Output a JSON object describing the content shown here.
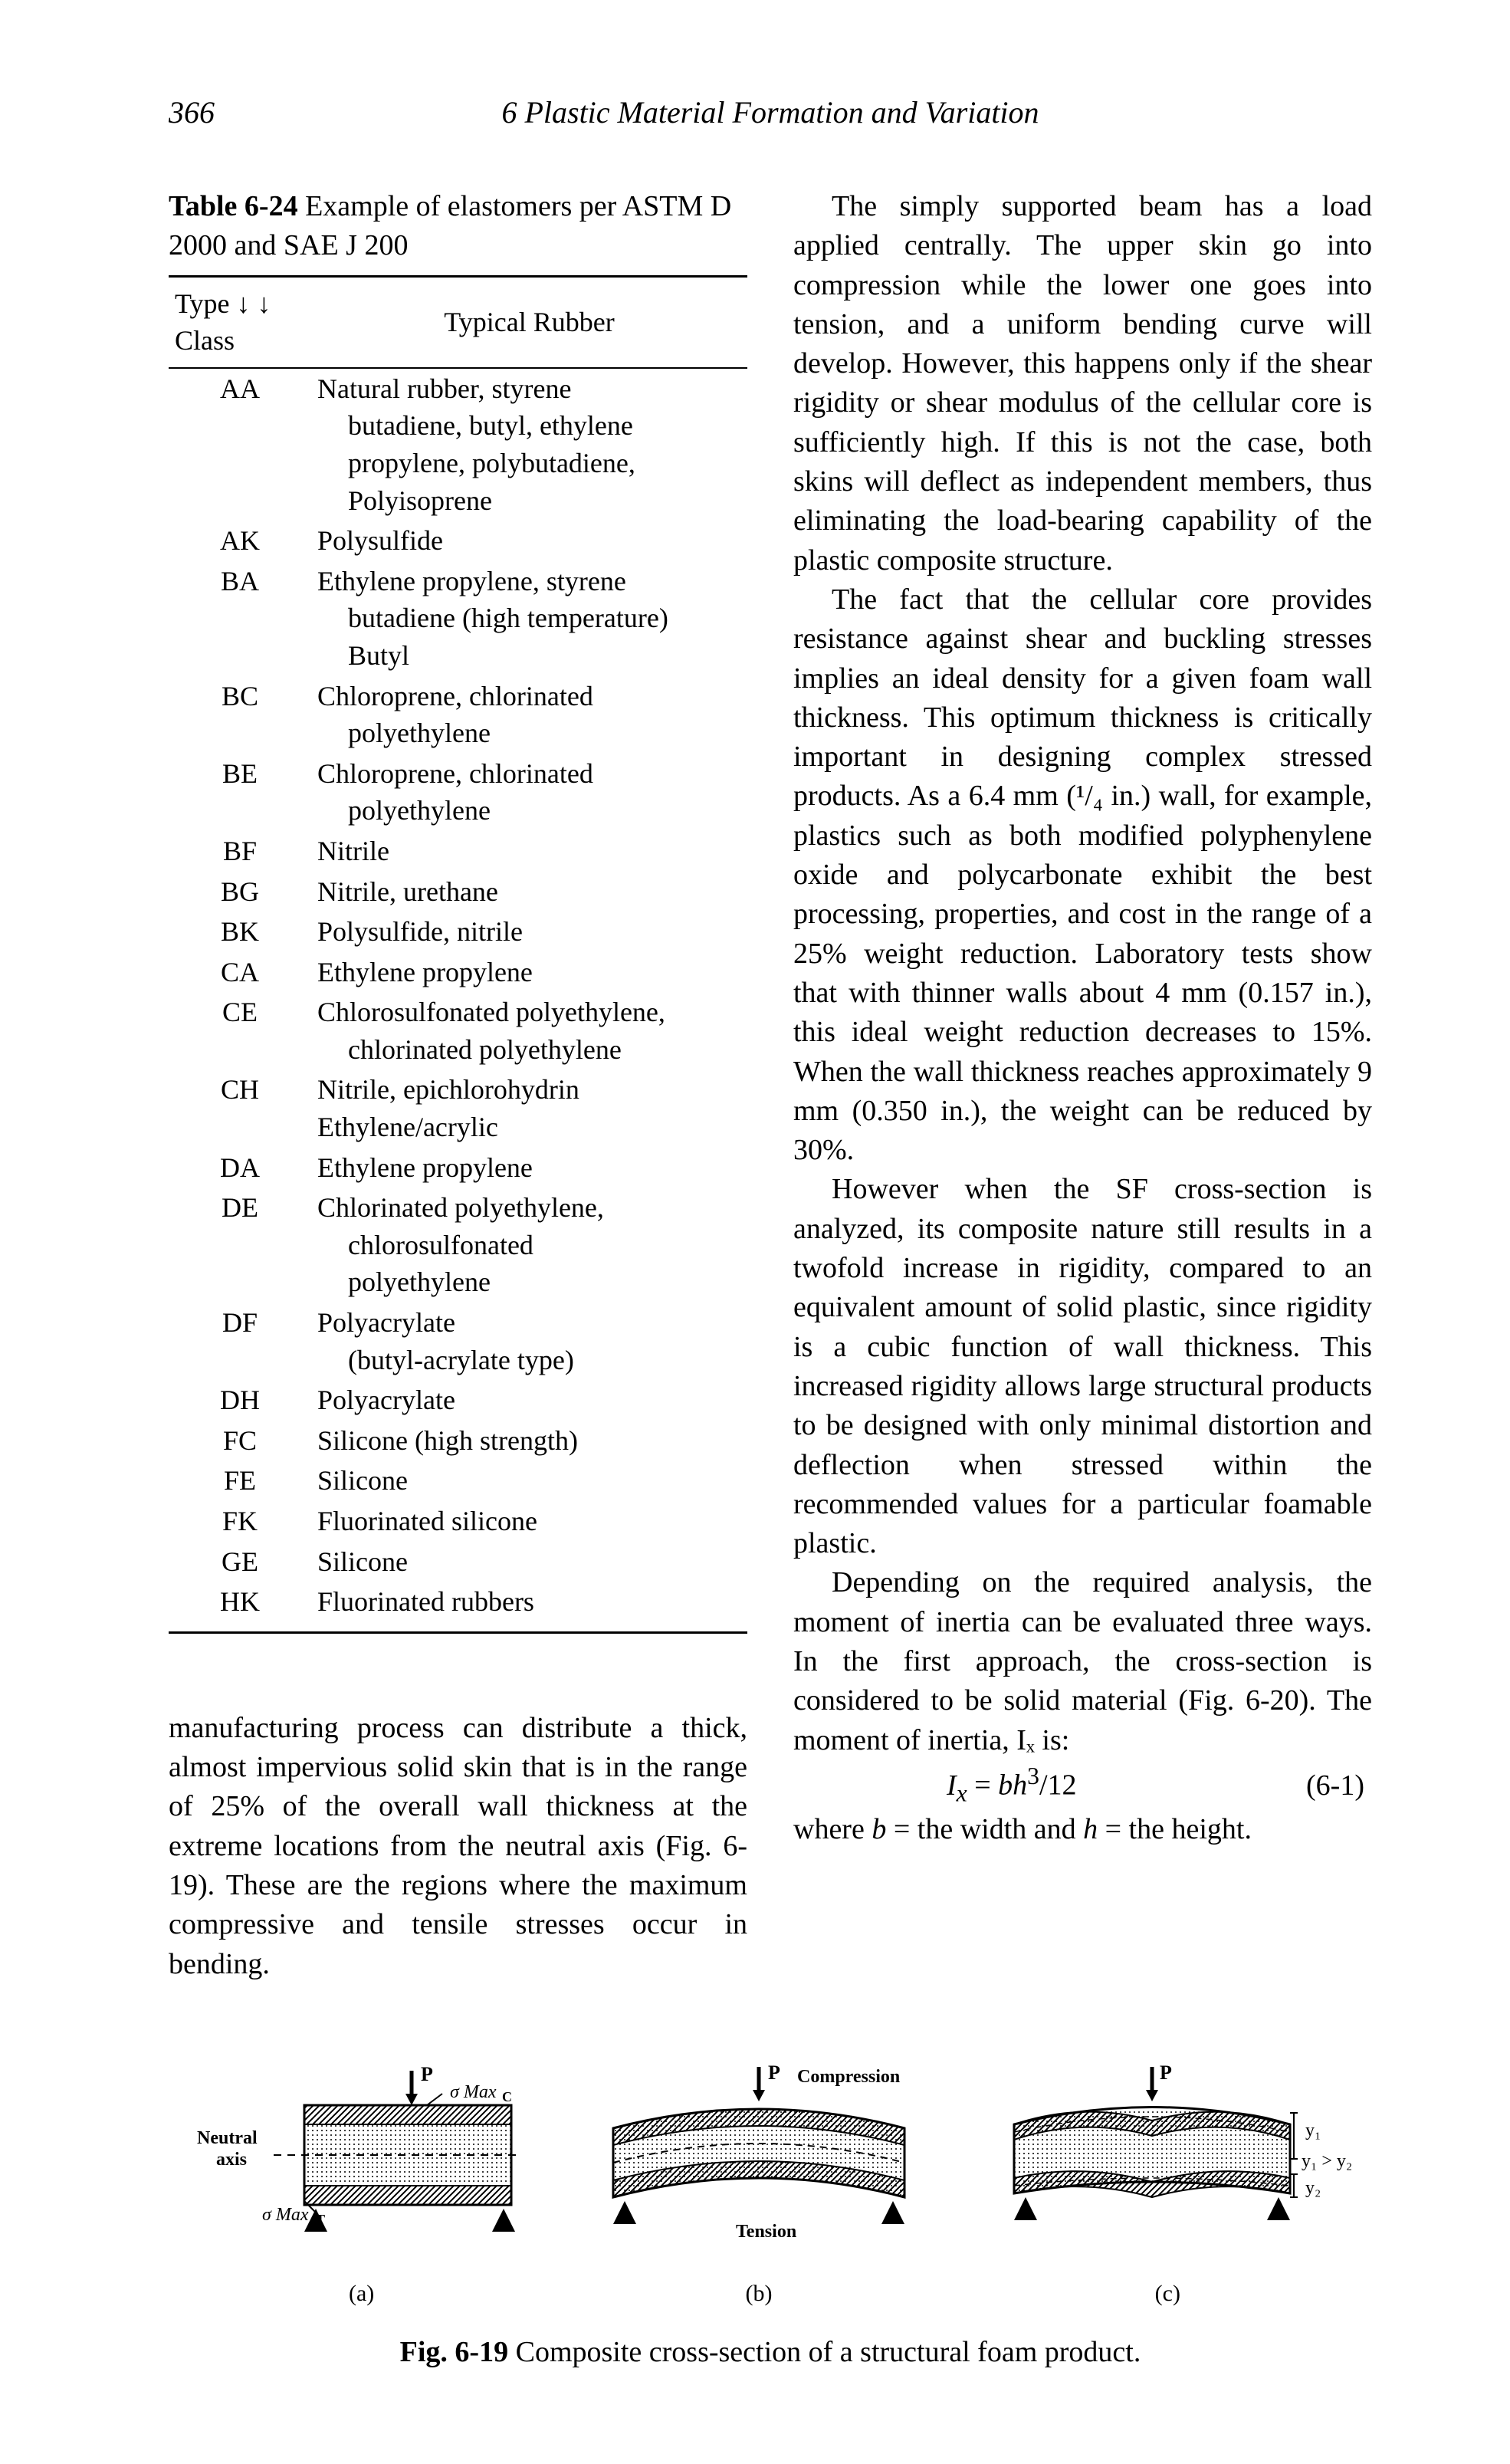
{
  "page": {
    "number": "366",
    "running_head": "6   Plastic Material Formation and Variation"
  },
  "table": {
    "label": "Table 6-24",
    "caption_rest": "   Example of elastomers per ASTM D 2000 and SAE J 200",
    "col_headers": [
      "Type ↓ ↓ Class",
      "Typical Rubber"
    ],
    "rows": [
      {
        "code": "AA",
        "text": "Natural rubber, styrene",
        "cont": [
          "butadiene, butyl, ethylene",
          "propylene, polybutadiene,",
          "Polyisoprene"
        ]
      },
      {
        "code": "AK",
        "text": "Polysulfide"
      },
      {
        "code": "BA",
        "text": "Ethylene propylene, styrene",
        "cont": [
          "butadiene (high temperature)",
          "Butyl"
        ]
      },
      {
        "code": "BC",
        "text": "Chloroprene, chlorinated",
        "cont": [
          "polyethylene"
        ]
      },
      {
        "code": "BE",
        "text": "Chloroprene, chlorinated",
        "cont": [
          "polyethylene"
        ]
      },
      {
        "code": "BF",
        "text": "Nitrile"
      },
      {
        "code": "BG",
        "text": "Nitrile, urethane"
      },
      {
        "code": "BK",
        "text": "Polysulfide, nitrile"
      },
      {
        "code": "CA",
        "text": "Ethylene propylene"
      },
      {
        "code": "CE",
        "text": "Chlorosulfonated polyethylene,",
        "cont": [
          "chlorinated polyethylene"
        ]
      },
      {
        "code": "CH",
        "text": "Nitrile, epichlorohydrin",
        "cont2": [
          "Ethylene/acrylic"
        ]
      },
      {
        "code": "DA",
        "text": "Ethylene propylene"
      },
      {
        "code": "DE",
        "text": "Chlorinated polyethylene,",
        "cont": [
          "chlorosulfonated",
          "polyethylene"
        ]
      },
      {
        "code": "DF",
        "text": "Polyacrylate",
        "cont": [
          "(butyl-acrylate type)"
        ]
      },
      {
        "code": "DH",
        "text": "Polyacrylate"
      },
      {
        "code": "FC",
        "text": "Silicone (high strength)"
      },
      {
        "code": "FE",
        "text": "Silicone"
      },
      {
        "code": "FK",
        "text": "Fluorinated silicone"
      },
      {
        "code": "GE",
        "text": "Silicone"
      },
      {
        "code": "HK",
        "text": "Fluorinated rubbers"
      }
    ]
  },
  "left_para": "manufacturing process can distribute a thick, almost impervious solid skin that is in the range of 25% of the overall wall thickness at the extreme locations from the neutral axis (Fig. 6-19). These are the regions where the maximum compressive and tensile stresses occur in bending.",
  "right_paras": [
    "The simply supported beam has a load applied centrally. The upper skin go into compression while the lower one goes into tension, and a uniform bending curve will develop. However, this happens only if the shear rigidity or shear modulus of the cellular core is sufficiently high. If this is not the case, both skins will deflect as independent members, thus eliminating the load-bearing capability of the plastic composite structure.",
    "The fact that the cellular core provides resistance against shear and buckling stresses implies an ideal density for a given foam wall thickness. This optimum thickness is critically important in designing complex stressed products. As a 6.4 mm (¹/₄ in.) wall, for example, plastics such as both modified polyphenylene oxide and polycarbonate exhibit the best processing, properties, and cost in the range of a 25% weight reduction. Laboratory tests show that with thinner walls about 4 mm (0.157 in.), this ideal weight reduction decreases to 15%. When the wall thickness reaches approximately 9 mm (0.350 in.), the weight can be reduced by 30%.",
    "However when the SF cross-section is analyzed, its composite nature still results in a twofold increase in rigidity, compared to an equivalent amount of solid plastic, since rigidity is a cubic function of wall thickness. This increased rigidity allows large structural products to be designed with only minimal distortion and deflection when stressed within the recommended values for a particular foamable plastic.",
    "Depending on the required analysis, the moment of inertia can be evaluated three ways. In the first approach, the cross-section is considered to be solid material (Fig. 6-20). The moment of inertia, Iₓ is:"
  ],
  "equation": {
    "body_html": "<i>I<sub>x</sub></i> = <i>bh</i><sup>3</sup>/12",
    "number": "(6-1)"
  },
  "where_line_html": "where <i>b</i> = the width and <i>h</i> = the height.",
  "figure": {
    "label": "Fig. 6-19",
    "caption_rest": "   Composite cross-section of a structural foam product.",
    "panels": {
      "a_label": "(a)",
      "b_label": "(b)",
      "c_label": "(c)",
      "labels": {
        "P": "P",
        "sigma_max_c": "σ Maxc",
        "sigma_max_t": "σ Maxᴛ",
        "neutral_axis": "Neutral\naxis",
        "compression": "Compression",
        "tension": "Tension",
        "y1": "y₁",
        "y2": "y₂",
        "y_rel": "y₁ > y₂"
      },
      "colors": {
        "stroke": "#000000",
        "fill_hatch": "#000000",
        "fill_light": "#ffffff"
      }
    }
  },
  "styling": {
    "background_color": "#ffffff",
    "text_color": "#000000",
    "body_font_size_pt": 11,
    "body_font_family": "Times New Roman (serif)",
    "rule_weight_heavy": 3,
    "rule_weight_light": 2
  }
}
